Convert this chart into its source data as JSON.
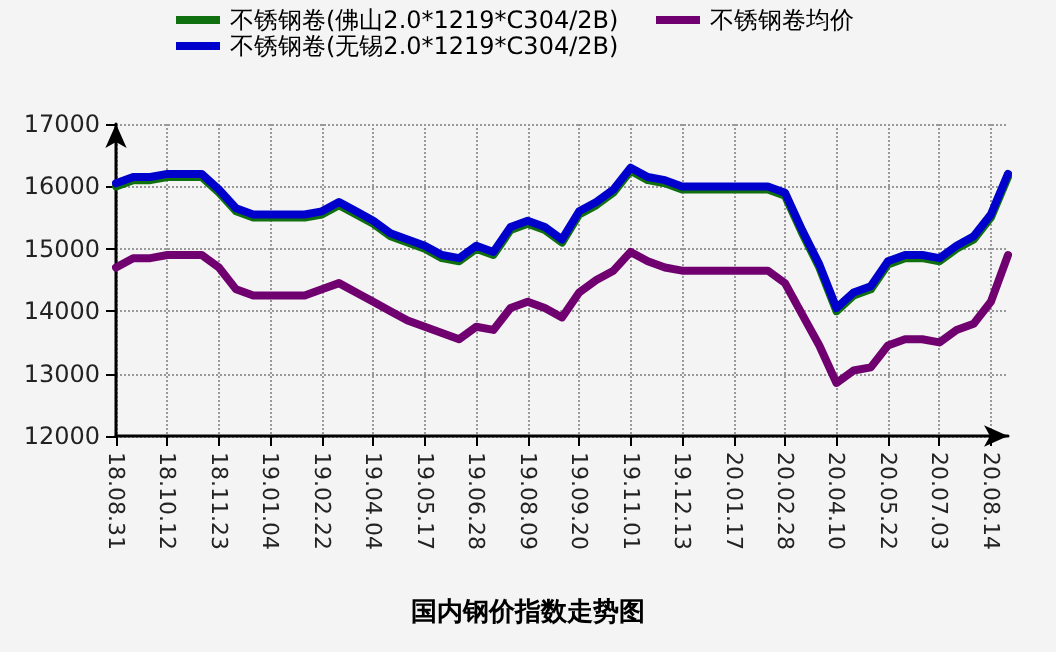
{
  "chart_data": {
    "type": "line",
    "title": "国内钢价指数走势图",
    "categories": [
      "18.08.31",
      null,
      null,
      "18.10.12",
      null,
      null,
      "18.11.23",
      null,
      null,
      "19.01.04",
      null,
      null,
      "19.02.22",
      null,
      null,
      "19.04.04",
      null,
      null,
      "19.05.17",
      null,
      null,
      "19.06.28",
      null,
      null,
      "19.08.09",
      null,
      null,
      "19.09.20",
      null,
      null,
      "19.11.01",
      null,
      null,
      "19.12.13",
      null,
      null,
      "20.01.17",
      null,
      null,
      "20.02.28",
      null,
      null,
      "20.04.10",
      null,
      null,
      "20.05.22",
      null,
      null,
      "20.07.03",
      null,
      null,
      "20.08.14",
      null
    ],
    "series": [
      {
        "name": "不锈钢卷(佛山2.0*1219*C304/2B)",
        "color": "#107010",
        "values": [
          16000,
          16100,
          16100,
          16150,
          16150,
          16150,
          15900,
          15600,
          15500,
          15500,
          15500,
          15500,
          15550,
          15700,
          15550,
          15400,
          15200,
          15100,
          15000,
          14850,
          14800,
          15000,
          14900,
          15300,
          15400,
          15300,
          15100,
          15550,
          15700,
          15900,
          16250,
          16100,
          16050,
          15950,
          15950,
          15950,
          15950,
          15950,
          15950,
          15850,
          15250,
          14700,
          14000,
          14250,
          14350,
          14750,
          14850,
          14850,
          14800,
          15000,
          15150,
          15500,
          16150
        ]
      },
      {
        "name": "不锈钢卷(无锡2.0*1219*C304/2B)",
        "color": "#0000cc",
        "values": [
          16050,
          16150,
          16150,
          16200,
          16200,
          16200,
          15950,
          15650,
          15550,
          15550,
          15550,
          15550,
          15600,
          15750,
          15600,
          15450,
          15250,
          15150,
          15050,
          14900,
          14850,
          15050,
          14950,
          15350,
          15450,
          15350,
          15150,
          15600,
          15750,
          15950,
          16300,
          16150,
          16100,
          16000,
          16000,
          16000,
          16000,
          16000,
          16000,
          15900,
          15300,
          14750,
          14050,
          14300,
          14400,
          14800,
          14900,
          14900,
          14850,
          15050,
          15200,
          15550,
          16200
        ]
      },
      {
        "name": "不锈钢卷均价",
        "color": "#700070",
        "values": [
          14700,
          14850,
          14850,
          14900,
          14900,
          14900,
          14700,
          14350,
          14250,
          14250,
          14250,
          14250,
          14350,
          14450,
          14300,
          14150,
          14000,
          13850,
          13750,
          13650,
          13550,
          13750,
          13700,
          14050,
          14150,
          14050,
          13900,
          14300,
          14500,
          14650,
          14950,
          14800,
          14700,
          14650,
          14650,
          14650,
          14650,
          14650,
          14650,
          14450,
          13950,
          13450,
          12850,
          13050,
          13100,
          13450,
          13550,
          13550,
          13500,
          13700,
          13800,
          14150,
          14900
        ]
      }
    ],
    "ylim": [
      12000,
      17000
    ],
    "yticks": [
      12000,
      13000,
      14000,
      15000,
      16000,
      17000
    ],
    "grid": true,
    "legend": "top",
    "marker": "none",
    "line_style": "solid"
  }
}
